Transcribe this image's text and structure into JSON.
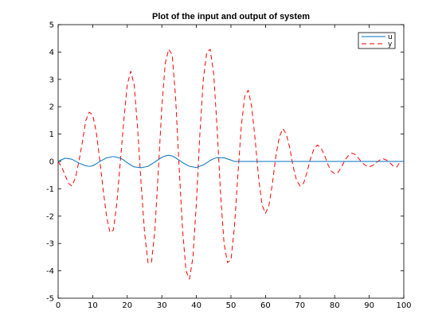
{
  "chart_data": {
    "type": "line",
    "title": "Plot of the input and output of system",
    "xlabel": "",
    "ylabel": "",
    "xlim": [
      0,
      100
    ],
    "ylim": [
      -5,
      5
    ],
    "x_ticks": [
      0,
      10,
      20,
      30,
      40,
      50,
      60,
      70,
      80,
      90,
      100
    ],
    "y_ticks": [
      -5,
      -4,
      -3,
      -2,
      -1,
      0,
      1,
      2,
      3,
      4,
      5
    ],
    "grid": false,
    "legend": {
      "position": "top-right",
      "entries": [
        "u",
        "y"
      ]
    },
    "series": [
      {
        "name": "u",
        "color": "#0072bd",
        "style": "solid",
        "x": [
          0,
          2,
          4,
          6,
          8,
          9,
          10,
          11,
          12,
          14,
          16,
          18,
          19,
          20,
          21,
          22,
          24,
          26,
          28,
          30,
          31,
          32,
          33,
          34,
          36,
          38,
          40,
          42,
          43,
          44,
          45,
          46,
          48,
          50,
          51,
          100
        ],
        "y": [
          0,
          0.12,
          0.08,
          -0.06,
          -0.16,
          -0.18,
          -0.16,
          -0.09,
          0,
          0.13,
          0.18,
          0.12,
          0.05,
          -0.05,
          -0.13,
          -0.2,
          -0.23,
          -0.18,
          -0.02,
          0.15,
          0.2,
          0.23,
          0.2,
          0.13,
          -0.04,
          -0.18,
          -0.22,
          -0.13,
          -0.05,
          0.04,
          0.1,
          0.14,
          0.13,
          0.05,
          0,
          0
        ]
      },
      {
        "name": "y",
        "color": "#ff0000",
        "style": "dashed",
        "x": [
          0,
          1,
          3,
          4,
          5,
          6,
          7,
          8,
          9,
          10,
          11,
          12,
          13,
          14,
          15,
          16,
          17,
          18,
          19,
          20,
          21,
          22,
          23,
          24,
          25,
          26,
          27,
          28,
          29,
          30,
          31,
          32,
          33,
          34,
          35,
          36,
          37,
          38,
          39,
          40,
          41,
          42,
          43,
          44,
          45,
          46,
          47,
          48,
          49,
          50,
          51,
          52,
          53,
          54,
          55,
          56,
          57,
          58,
          59,
          60,
          61,
          62,
          63,
          64,
          65,
          66,
          67,
          68,
          69,
          70,
          71,
          72,
          73,
          74,
          75,
          76,
          77,
          78,
          79,
          80,
          81,
          82,
          83,
          84,
          85,
          86,
          87,
          88,
          89,
          90,
          91,
          92,
          93,
          94,
          95,
          96,
          97,
          98,
          99
        ],
        "y": [
          0,
          -0.2,
          -0.8,
          -0.9,
          -0.6,
          0,
          0.7,
          1.5,
          1.8,
          1.7,
          1.1,
          0.1,
          -1.0,
          -2.0,
          -2.6,
          -2.5,
          -1.5,
          0.0,
          1.5,
          2.8,
          3.3,
          2.8,
          1.2,
          -0.8,
          -2.6,
          -3.7,
          -3.7,
          -2.5,
          -0.3,
          2.0,
          3.6,
          4.1,
          3.9,
          2.3,
          -0.2,
          -2.5,
          -4.0,
          -4.3,
          -3.5,
          -1.5,
          1.0,
          3.0,
          4.0,
          4.1,
          3.2,
          1.2,
          -1.2,
          -3.0,
          -3.7,
          -3.6,
          -2.4,
          -0.5,
          1.3,
          2.4,
          2.6,
          2.0,
          0.8,
          -0.6,
          -1.6,
          -1.9,
          -1.6,
          -0.8,
          0.2,
          0.9,
          1.2,
          1.0,
          0.5,
          -0.2,
          -0.7,
          -0.9,
          -0.8,
          -0.4,
          0.1,
          0.45,
          0.6,
          0.5,
          0.25,
          -0.1,
          -0.35,
          -0.45,
          -0.4,
          -0.2,
          0.05,
          0.22,
          0.3,
          0.25,
          0.1,
          -0.05,
          -0.15,
          -0.2,
          -0.15,
          -0.05,
          0.05,
          0.1,
          0.05,
          -0.05,
          -0.18,
          -0.2,
          0
        ]
      }
    ]
  }
}
